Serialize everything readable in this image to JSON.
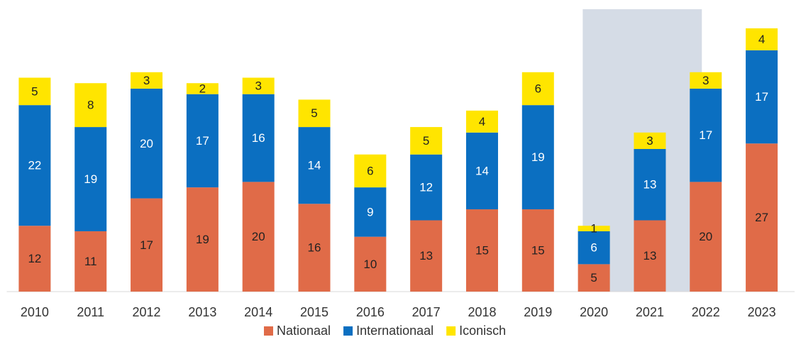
{
  "chart_data": {
    "type": "stacked_bar",
    "categories": [
      "2010",
      "2011",
      "2012",
      "2013",
      "2014",
      "2015",
      "2016",
      "2017",
      "2018",
      "2019",
      "2020",
      "2021",
      "2022",
      "2023"
    ],
    "series": [
      {
        "name": "Nationaal",
        "color": "#e06b48",
        "label_color": "#222222",
        "values": [
          12,
          11,
          17,
          19,
          20,
          16,
          10,
          13,
          15,
          15,
          5,
          13,
          20,
          27
        ]
      },
      {
        "name": "Internationaal",
        "color": "#0b6fc1",
        "label_color": "#ffffff",
        "values": [
          22,
          19,
          20,
          17,
          16,
          14,
          9,
          12,
          14,
          19,
          6,
          13,
          17,
          17
        ]
      },
      {
        "name": "Iconisch",
        "color": "#ffe500",
        "label_color": "#222222",
        "values": [
          5,
          8,
          3,
          2,
          3,
          5,
          6,
          5,
          4,
          6,
          1,
          3,
          3,
          4
        ]
      }
    ],
    "ylim": [
      0,
      52
    ],
    "shaded_range": [
      "2020",
      "2021"
    ],
    "shade_color": "#d5dce6",
    "legend": "bottom"
  }
}
